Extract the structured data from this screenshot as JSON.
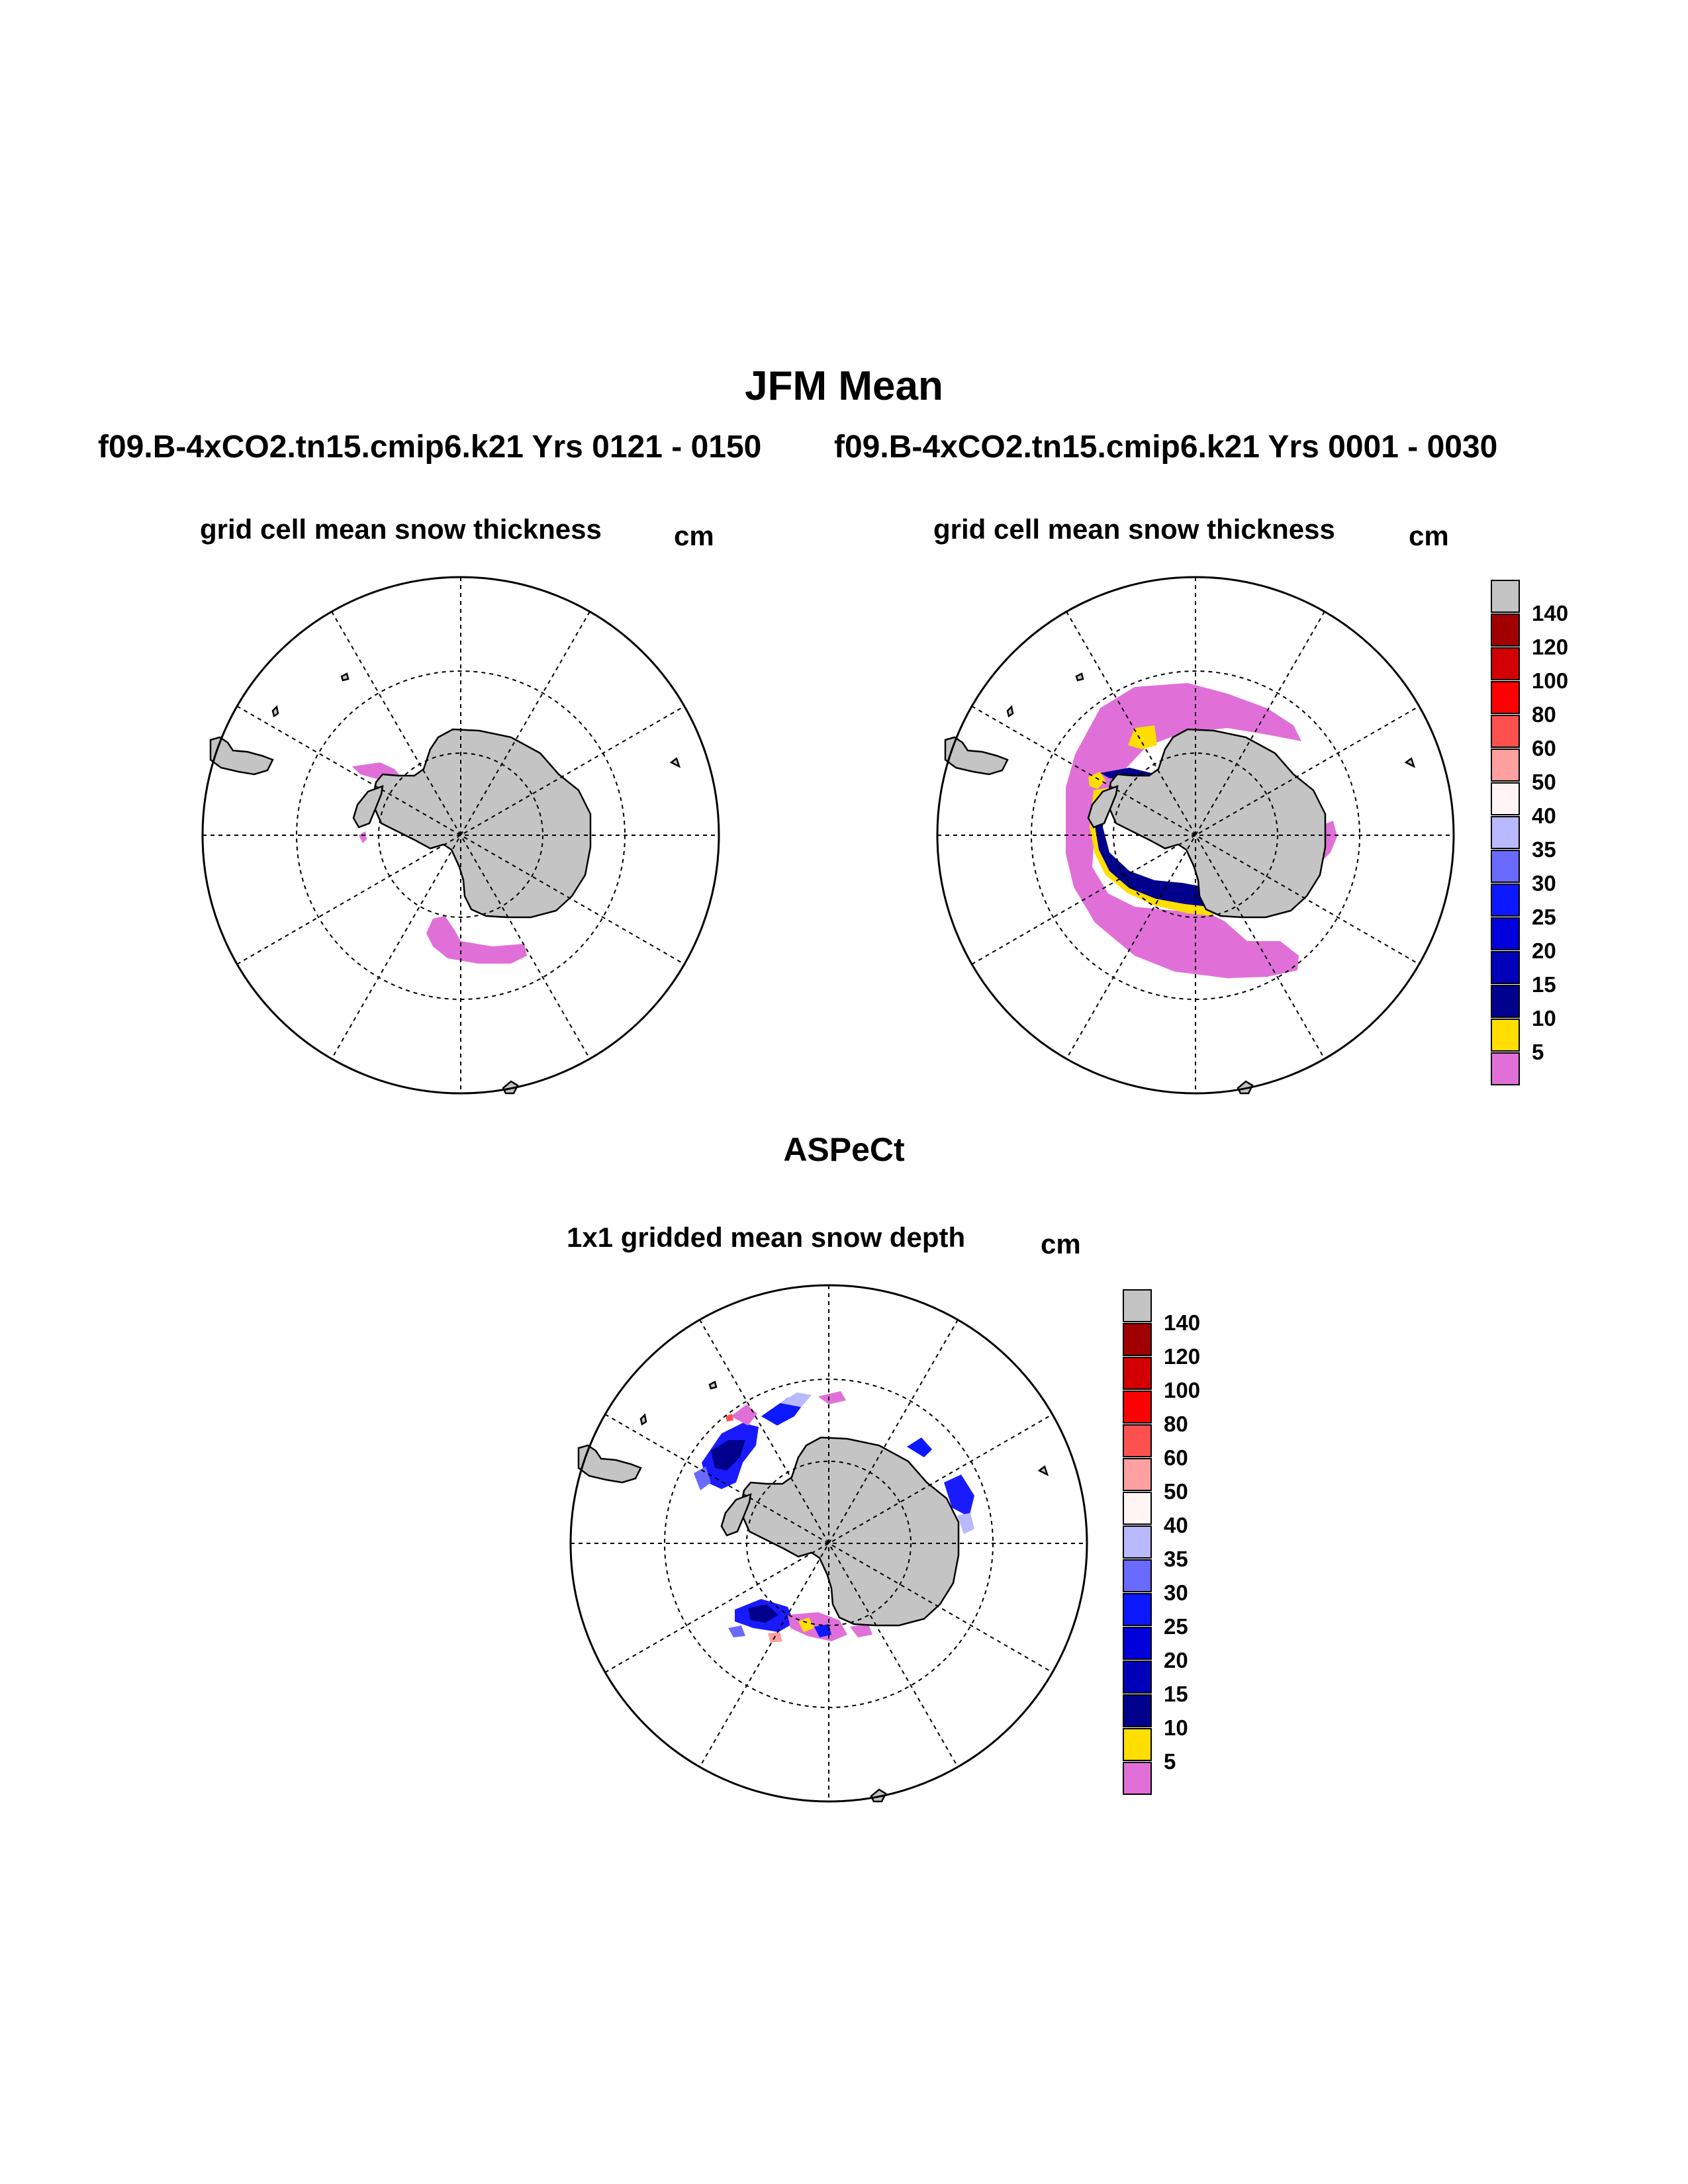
{
  "figure": {
    "title": "JFM Mean",
    "case_left": "f09.B-4xCO2.tn15.cmip6.k21  Yrs 0121 - 0150",
    "case_right": "f09.B-4xCO2.tn15.cmip6.k21  Yrs 0001 - 0030",
    "obs_title": "ASPeCt"
  },
  "panels": [
    {
      "label": "grid cell mean snow thickness",
      "unit": "cm"
    },
    {
      "label": "grid cell mean snow thickness",
      "unit": "cm"
    },
    {
      "label": "1x1 gridded mean snow depth",
      "unit": "cm"
    }
  ],
  "colorbar": {
    "levels": [
      "5",
      "10",
      "15",
      "20",
      "25",
      "30",
      "35",
      "40",
      "50",
      "60",
      "80",
      "100",
      "120",
      "140"
    ],
    "colors": [
      "#e070d8",
      "#ffde00",
      "#00008c",
      "#0000b8",
      "#0000dc",
      "#0c18ff",
      "#6a6aff",
      "#b9b9ff",
      "#fff5f5",
      "#ffa0a0",
      "#ff5050",
      "#ff0000",
      "#d20000",
      "#a00000",
      "#c4c4c4"
    ]
  },
  "colors": {
    "land": "#c4c4c4",
    "coast": "#000000",
    "grid": "#000000"
  }
}
